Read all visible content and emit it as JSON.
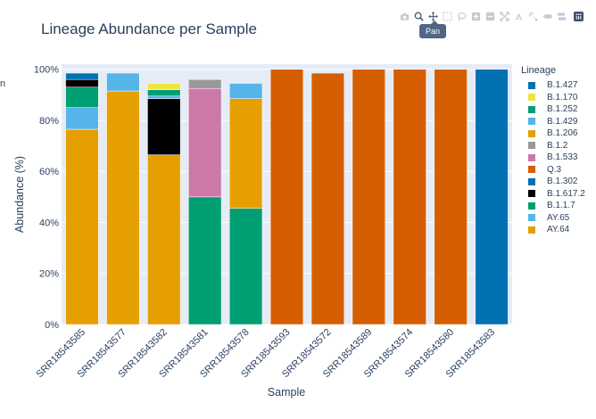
{
  "edge_text": "n",
  "modebar": {
    "tooltip": "Pan",
    "buttons": [
      {
        "name": "camera-icon",
        "label": "Download plot as a png"
      },
      {
        "name": "zoom-icon",
        "label": "Zoom"
      },
      {
        "name": "pan-icon",
        "label": "Pan"
      },
      {
        "name": "box-select-icon",
        "label": "Box Select"
      },
      {
        "name": "lasso-select-icon",
        "label": "Lasso Select"
      },
      {
        "name": "zoom-in-icon",
        "label": "Zoom in"
      },
      {
        "name": "zoom-out-icon",
        "label": "Zoom out"
      },
      {
        "name": "autoscale-icon",
        "label": "Autoscale"
      },
      {
        "name": "reset-axes-icon",
        "label": "Reset axes"
      },
      {
        "name": "spike-lines-icon",
        "label": "Toggle Spike Lines"
      },
      {
        "name": "hover-closest-icon",
        "label": "Show closest data on hover"
      },
      {
        "name": "hover-compare-icon",
        "label": "Compare data on hover"
      },
      {
        "name": "plotly-logo-icon",
        "label": "Produced with Plotly"
      }
    ]
  },
  "chart_data": {
    "type": "bar",
    "barmode": "stack",
    "title": "Lineage Abundance per Sample",
    "xlabel": "Sample",
    "ylabel": "Abundance (%)",
    "ylim": [
      0,
      102
    ],
    "yticks": [
      0,
      20,
      40,
      60,
      80,
      100
    ],
    "ytick_labels": [
      "0%",
      "20%",
      "40%",
      "60%",
      "80%",
      "100%"
    ],
    "legend_title": "Lineage",
    "legend_position": "right",
    "categories": [
      "SRR18543585",
      "SRR18543577",
      "SRR18543582",
      "SRR18543581",
      "SRR18543578",
      "SRR18543593",
      "SRR18543572",
      "SRR18543589",
      "SRR18543574",
      "SRR18543580",
      "SRR18543583"
    ],
    "stack_order": [
      "AY.64",
      "AY.65",
      "B.1.1.7",
      "B.1.617.2",
      "B.1.302",
      "Q.3",
      "B.1.533",
      "B.1.2",
      "B.1.206",
      "B.1.429",
      "B.1.252",
      "B.1.170",
      "B.1.427"
    ],
    "series": [
      {
        "name": "B.1.427",
        "color": "#0072b2",
        "values": [
          0,
          0,
          0,
          0,
          0,
          0,
          0,
          0,
          0,
          0,
          100
        ]
      },
      {
        "name": "B.1.170",
        "color": "#f0e442",
        "values": [
          0,
          0,
          2.5,
          0,
          0,
          0,
          0,
          0,
          0,
          0,
          0
        ]
      },
      {
        "name": "B.1.252",
        "color": "#009e73",
        "values": [
          0,
          0,
          2.5,
          0,
          0,
          0,
          0,
          0,
          0,
          0,
          0
        ]
      },
      {
        "name": "B.1.429",
        "color": "#56b4e9",
        "values": [
          0,
          0,
          1,
          0,
          6,
          0,
          0,
          0,
          0,
          0,
          0
        ]
      },
      {
        "name": "B.1.206",
        "color": "#e69f00",
        "values": [
          0,
          0,
          0,
          0,
          43,
          0,
          0,
          0,
          0,
          0,
          0
        ]
      },
      {
        "name": "B.1.2",
        "color": "#999999",
        "values": [
          0,
          0,
          0,
          3.5,
          0,
          0,
          0,
          0,
          0,
          0,
          0
        ]
      },
      {
        "name": "B.1.533",
        "color": "#cc79a7",
        "values": [
          0,
          0,
          0,
          42.5,
          0,
          0,
          0,
          0,
          0,
          0,
          0
        ]
      },
      {
        "name": "Q.3",
        "color": "#d55e00",
        "values": [
          0,
          0,
          0,
          0,
          0,
          100,
          98.5,
          100,
          100,
          100,
          0
        ]
      },
      {
        "name": "B.1.302",
        "color": "#0072b2",
        "values": [
          2.5,
          0,
          0,
          0,
          0,
          0,
          0,
          0,
          0,
          0,
          0
        ]
      },
      {
        "name": "B.1.617.2",
        "color": "#000000",
        "values": [
          3,
          0,
          22,
          0,
          0,
          0,
          0,
          0,
          0,
          0,
          0
        ]
      },
      {
        "name": "B.1.1.7",
        "color": "#009e73",
        "values": [
          8,
          0,
          0,
          50,
          45.5,
          0,
          0,
          0,
          0,
          0,
          0
        ]
      },
      {
        "name": "AY.65",
        "color": "#56b4e9",
        "values": [
          8.5,
          7,
          0,
          0,
          0,
          0,
          0,
          0,
          0,
          0,
          0
        ]
      },
      {
        "name": "AY.64",
        "color": "#e69f00",
        "values": [
          76.5,
          91.5,
          66.5,
          0,
          0,
          0,
          0,
          0,
          0,
          0,
          0
        ]
      }
    ]
  },
  "colors": {
    "plot_background": "#e5ecf6",
    "gridline": "#ffffff",
    "text": "#2a3f5f"
  }
}
